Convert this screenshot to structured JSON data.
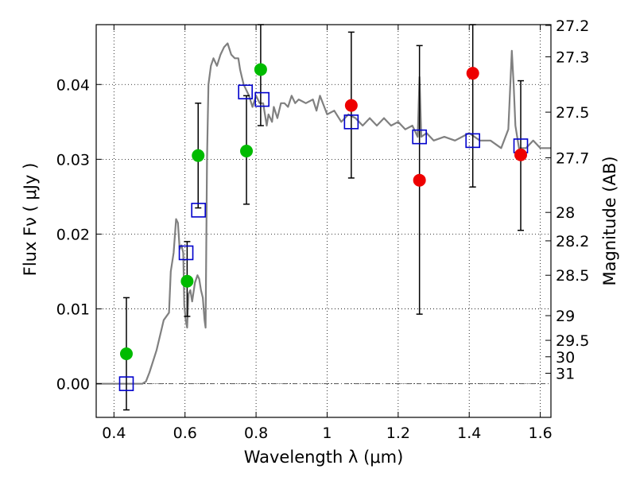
{
  "chart_data": {
    "type": "scatter",
    "xlabel": "Wavelength  λ (μm)",
    "ylabel_left": "Flux  Fν  ( μJy )",
    "ylabel_right": "Magnitude (AB)",
    "xlim": [
      0.35,
      1.63
    ],
    "ylim": [
      -0.0045,
      0.048
    ],
    "x_ticks": [
      {
        "value": 0.4,
        "label": "0.4"
      },
      {
        "value": 0.6,
        "label": "0.6"
      },
      {
        "value": 0.8,
        "label": "0.8"
      },
      {
        "value": 1.0,
        "label": "1"
      },
      {
        "value": 1.2,
        "label": "1.2"
      },
      {
        "value": 1.4,
        "label": "1.4"
      },
      {
        "value": 1.6,
        "label": "1.6"
      }
    ],
    "y_ticks": [
      {
        "value": 0.0,
        "label": "0.00"
      },
      {
        "value": 0.01,
        "label": "0.01"
      },
      {
        "value": 0.02,
        "label": "0.02"
      },
      {
        "value": 0.03,
        "label": "0.03"
      },
      {
        "value": 0.04,
        "label": "0.04"
      }
    ],
    "mag_ticks": [
      {
        "flux": 0.0479,
        "label": "27.2"
      },
      {
        "flux": 0.0437,
        "label": "27.3"
      },
      {
        "flux": 0.0363,
        "label": "27.5"
      },
      {
        "flux": 0.0302,
        "label": "27.7"
      },
      {
        "flux": 0.0229,
        "label": "28"
      },
      {
        "flux": 0.0191,
        "label": "28.2"
      },
      {
        "flux": 0.0145,
        "label": "28.5"
      },
      {
        "flux": 0.0091,
        "label": "29"
      },
      {
        "flux": 0.0058,
        "label": "29.5"
      },
      {
        "flux": 0.0036,
        "label": "30"
      },
      {
        "flux": 0.0014,
        "label": "31"
      }
    ],
    "grid": true,
    "series": [
      {
        "kind": "line",
        "color": "#808080",
        "points": [
          [
            0.35,
            0.0
          ],
          [
            0.48,
            0.0
          ],
          [
            0.49,
            0.0003
          ],
          [
            0.5,
            0.0015
          ],
          [
            0.52,
            0.0045
          ],
          [
            0.54,
            0.0085
          ],
          [
            0.555,
            0.0095
          ],
          [
            0.56,
            0.015
          ],
          [
            0.568,
            0.0175
          ],
          [
            0.575,
            0.022
          ],
          [
            0.58,
            0.0215
          ],
          [
            0.585,
            0.018
          ],
          [
            0.59,
            0.0185
          ],
          [
            0.595,
            0.0175
          ],
          [
            0.598,
            0.0105
          ],
          [
            0.602,
            0.0085
          ],
          [
            0.606,
            0.0075
          ],
          [
            0.61,
            0.012
          ],
          [
            0.615,
            0.0125
          ],
          [
            0.62,
            0.011
          ],
          [
            0.628,
            0.0135
          ],
          [
            0.635,
            0.0145
          ],
          [
            0.64,
            0.014
          ],
          [
            0.645,
            0.0125
          ],
          [
            0.65,
            0.0115
          ],
          [
            0.655,
            0.0085
          ],
          [
            0.658,
            0.0075
          ],
          [
            0.662,
            0.03
          ],
          [
            0.666,
            0.04
          ],
          [
            0.673,
            0.0425
          ],
          [
            0.68,
            0.0435
          ],
          [
            0.69,
            0.0425
          ],
          [
            0.7,
            0.044
          ],
          [
            0.71,
            0.045
          ],
          [
            0.72,
            0.0455
          ],
          [
            0.73,
            0.044
          ],
          [
            0.74,
            0.0435
          ],
          [
            0.75,
            0.0435
          ],
          [
            0.755,
            0.042
          ],
          [
            0.76,
            0.041
          ],
          [
            0.765,
            0.04
          ],
          [
            0.78,
            0.0385
          ],
          [
            0.79,
            0.037
          ],
          [
            0.8,
            0.0385
          ],
          [
            0.81,
            0.0375
          ],
          [
            0.82,
            0.0375
          ],
          [
            0.83,
            0.0345
          ],
          [
            0.835,
            0.036
          ],
          [
            0.845,
            0.035
          ],
          [
            0.85,
            0.037
          ],
          [
            0.86,
            0.0355
          ],
          [
            0.87,
            0.0375
          ],
          [
            0.88,
            0.0375
          ],
          [
            0.89,
            0.037
          ],
          [
            0.9,
            0.0385
          ],
          [
            0.91,
            0.0375
          ],
          [
            0.92,
            0.038
          ],
          [
            0.94,
            0.0375
          ],
          [
            0.96,
            0.038
          ],
          [
            0.97,
            0.0365
          ],
          [
            0.98,
            0.0385
          ],
          [
            1.0,
            0.036
          ],
          [
            1.02,
            0.0365
          ],
          [
            1.04,
            0.035
          ],
          [
            1.06,
            0.036
          ],
          [
            1.08,
            0.0355
          ],
          [
            1.1,
            0.0345
          ],
          [
            1.12,
            0.0355
          ],
          [
            1.14,
            0.0345
          ],
          [
            1.16,
            0.0355
          ],
          [
            1.18,
            0.0345
          ],
          [
            1.2,
            0.035
          ],
          [
            1.22,
            0.034
          ],
          [
            1.24,
            0.0345
          ],
          [
            1.255,
            0.033
          ],
          [
            1.26,
            0.041
          ],
          [
            1.265,
            0.033
          ],
          [
            1.28,
            0.0335
          ],
          [
            1.3,
            0.0325
          ],
          [
            1.33,
            0.033
          ],
          [
            1.36,
            0.0325
          ],
          [
            1.4,
            0.0335
          ],
          [
            1.43,
            0.0325
          ],
          [
            1.46,
            0.0325
          ],
          [
            1.49,
            0.0315
          ],
          [
            1.51,
            0.034
          ],
          [
            1.52,
            0.0445
          ],
          [
            1.525,
            0.04
          ],
          [
            1.53,
            0.0345
          ],
          [
            1.54,
            0.0315
          ],
          [
            1.56,
            0.0315
          ],
          [
            1.58,
            0.0325
          ],
          [
            1.6,
            0.0315
          ],
          [
            1.63,
            0.0315
          ]
        ]
      },
      {
        "kind": "squares",
        "color": "#0000cc",
        "points": [
          [
            0.435,
            0.0
          ],
          [
            0.603,
            0.0175
          ],
          [
            0.638,
            0.0232
          ],
          [
            0.77,
            0.039
          ],
          [
            0.817,
            0.038
          ],
          [
            1.068,
            0.035
          ],
          [
            1.26,
            0.033
          ],
          [
            1.41,
            0.0325
          ],
          [
            1.545,
            0.0318
          ]
        ]
      },
      {
        "kind": "circles",
        "color": "#00bb00",
        "points": [
          [
            0.435,
            0.004
          ],
          [
            0.606,
            0.0137
          ],
          [
            0.637,
            0.0305
          ],
          [
            0.773,
            0.0311
          ],
          [
            0.813,
            0.042
          ]
        ]
      },
      {
        "kind": "circles",
        "color": "#ee0000",
        "points": [
          [
            1.068,
            0.0372
          ],
          [
            1.26,
            0.0272
          ],
          [
            1.41,
            0.0415
          ],
          [
            1.545,
            0.0306
          ]
        ]
      },
      {
        "kind": "errorbars",
        "color": "#000000",
        "bars": [
          {
            "x": 0.435,
            "low": -0.0035,
            "high": 0.0115
          },
          {
            "x": 0.606,
            "low": 0.009,
            "high": 0.019
          },
          {
            "x": 0.637,
            "low": 0.0235,
            "high": 0.0375
          },
          {
            "x": 0.773,
            "low": 0.024,
            "high": 0.0385
          },
          {
            "x": 0.813,
            "low": 0.0345,
            "high": 0.048
          },
          {
            "x": 1.068,
            "low": 0.0275,
            "high": 0.047
          },
          {
            "x": 1.26,
            "low": 0.0093,
            "high": 0.0452
          },
          {
            "x": 1.41,
            "low": 0.0263,
            "high": 0.048
          },
          {
            "x": 1.545,
            "low": 0.0205,
            "high": 0.0405
          }
        ]
      }
    ]
  }
}
